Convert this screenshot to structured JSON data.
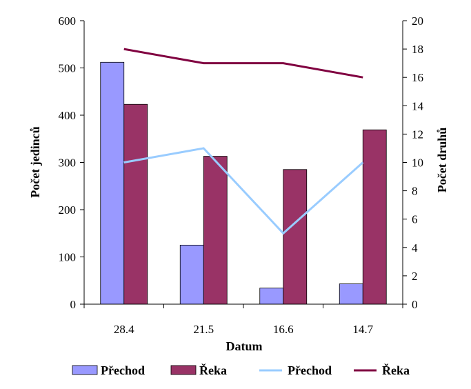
{
  "chart_data": {
    "type": "bar+line",
    "categories": [
      "28.4",
      "21.5",
      "16.6",
      "14.7"
    ],
    "xlabel": "Datum",
    "y_left": {
      "label": "Počet jedinců",
      "range": [
        0,
        600
      ],
      "ticks": [
        "0",
        "100",
        "200",
        "300",
        "400",
        "500",
        "600"
      ]
    },
    "y_right": {
      "label": "Počet druhů",
      "range": [
        0,
        20
      ],
      "ticks": [
        "0",
        "2",
        "4",
        "6",
        "8",
        "10",
        "12",
        "14",
        "16",
        "18",
        "20"
      ]
    },
    "bar_series": [
      {
        "name": "Přechod",
        "color": "#9999ff",
        "axis": "left",
        "values": [
          512,
          125,
          34,
          43
        ]
      },
      {
        "name": "Řeka",
        "color": "#993366",
        "axis": "left",
        "values": [
          423,
          313,
          285,
          369
        ]
      }
    ],
    "line_series": [
      {
        "name": "Přechod",
        "color": "#99ccff",
        "axis": "right",
        "values": [
          10,
          11,
          5,
          10
        ]
      },
      {
        "name": "Řeka",
        "color": "#800040",
        "axis": "right",
        "values": [
          18,
          17,
          17,
          16
        ]
      }
    ],
    "legend": {
      "position": "bottom",
      "items": [
        {
          "label": "Přechod",
          "kind": "bar",
          "color": "#9999ff"
        },
        {
          "label": "Řeka",
          "kind": "bar",
          "color": "#993366"
        },
        {
          "label": "Přechod",
          "kind": "line",
          "color": "#99ccff"
        },
        {
          "label": "Řeka",
          "kind": "line",
          "color": "#800040"
        }
      ]
    }
  }
}
